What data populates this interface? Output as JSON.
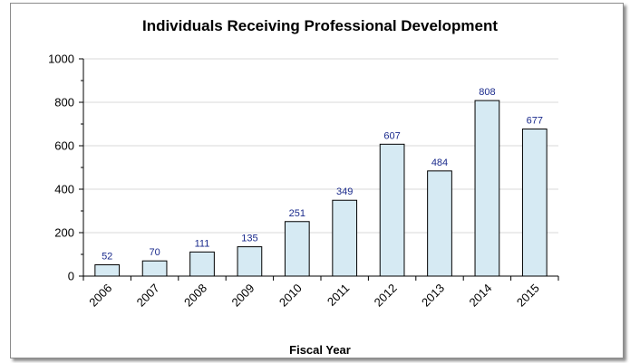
{
  "chart_data": {
    "type": "bar",
    "title": "Individuals Receiving Professional Development",
    "xlabel": "Fiscal Year",
    "ylabel": "",
    "categories": [
      "2006",
      "2007",
      "2008",
      "2009",
      "2010",
      "2011",
      "2012",
      "2013",
      "2014",
      "2015"
    ],
    "values": [
      52,
      70,
      111,
      135,
      251,
      349,
      607,
      484,
      808,
      677
    ],
    "ylim": [
      0,
      1000
    ],
    "yticks": [
      0,
      200,
      400,
      600,
      800,
      1000
    ],
    "grid": true,
    "legend": "none",
    "bar_color": "#d6eaf3",
    "bar_edge_color": "#000000",
    "label_color": "#1a2a8c"
  }
}
